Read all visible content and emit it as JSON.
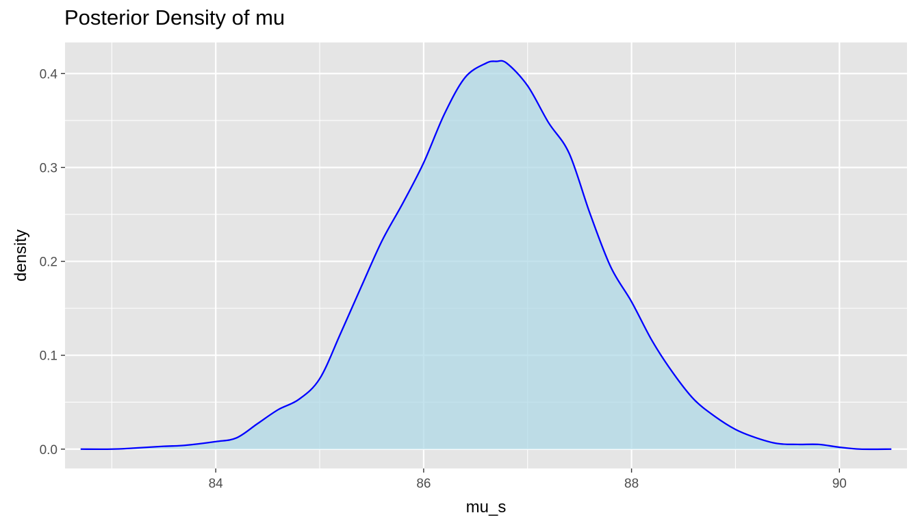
{
  "chart_data": {
    "type": "area",
    "title": "Posterior Density of mu",
    "xlabel": "mu_s",
    "ylabel": "density",
    "xlim": [
      82.55,
      90.65
    ],
    "ylim": [
      -0.0206,
      0.4331
    ],
    "x_ticks": [
      84,
      86,
      88,
      90
    ],
    "x_tick_labels": [
      "84",
      "86",
      "88",
      "90"
    ],
    "y_ticks": [
      0.0,
      0.1,
      0.2,
      0.3,
      0.4
    ],
    "y_tick_labels": [
      "0.0",
      "0.1",
      "0.2",
      "0.3",
      "0.4"
    ],
    "grid": true,
    "series": [
      {
        "x": [
          82.7,
          83.0,
          83.2,
          83.5,
          83.7,
          84.0,
          84.2,
          84.4,
          84.6,
          84.8,
          85.0,
          85.2,
          85.4,
          85.6,
          85.8,
          86.0,
          86.2,
          86.4,
          86.6,
          86.7,
          86.8,
          87.0,
          87.2,
          87.4,
          87.6,
          87.8,
          88.0,
          88.2,
          88.4,
          88.6,
          88.8,
          89.0,
          89.2,
          89.4,
          89.6,
          89.8,
          90.0,
          90.2,
          90.5
        ],
        "y": [
          0.0,
          0.0,
          0.001,
          0.003,
          0.004,
          0.008,
          0.012,
          0.027,
          0.042,
          0.053,
          0.075,
          0.123,
          0.173,
          0.222,
          0.262,
          0.305,
          0.357,
          0.396,
          0.411,
          0.413,
          0.411,
          0.387,
          0.348,
          0.315,
          0.251,
          0.194,
          0.157,
          0.115,
          0.081,
          0.053,
          0.035,
          0.021,
          0.012,
          0.006,
          0.005,
          0.005,
          0.002,
          0.0,
          0.0
        ]
      }
    ]
  },
  "colors": {
    "panel_background": "#e5e5e5",
    "grid_line": "#ffffff",
    "fill": "#add8e6",
    "line": "#0000ff",
    "tick_text": "#4d4d4d",
    "text": "#000000"
  }
}
